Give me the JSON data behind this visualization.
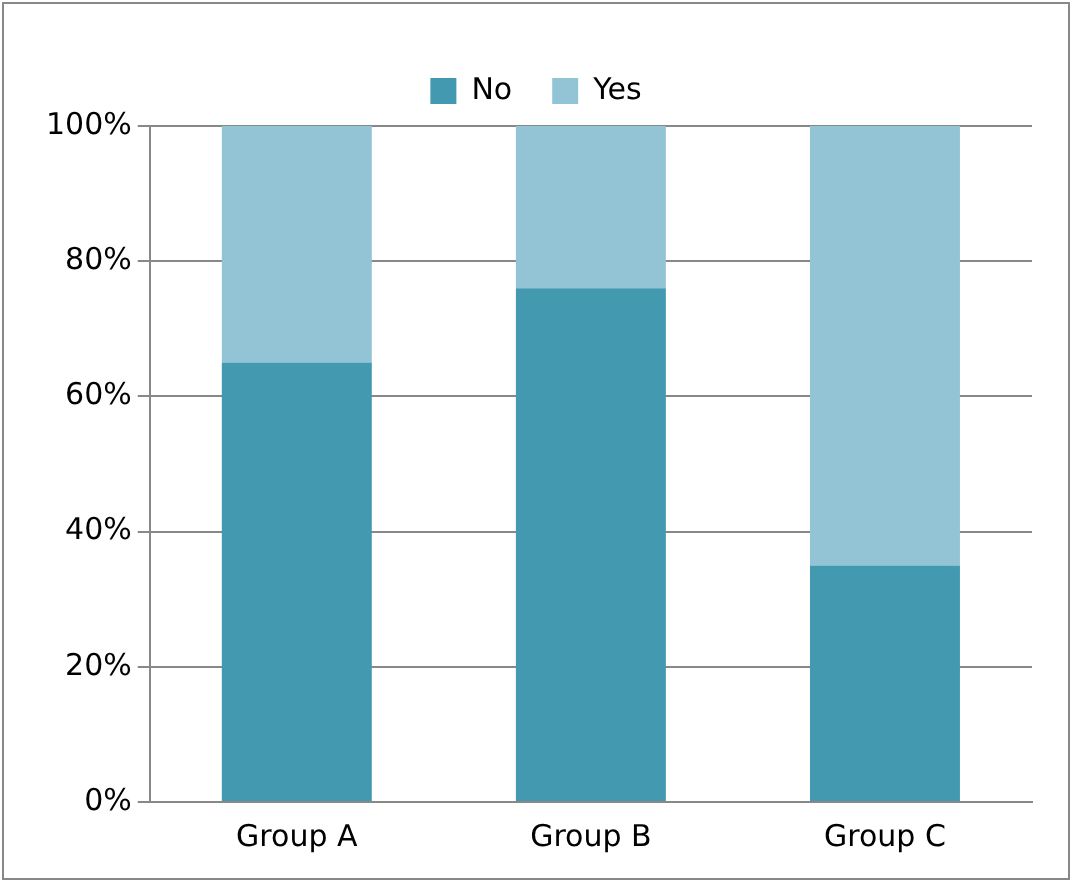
{
  "chart_data": {
    "type": "bar",
    "stacked": true,
    "categories": [
      "Group A",
      "Group B",
      "Group C"
    ],
    "series": [
      {
        "name": "No",
        "color": "#4399b0",
        "values": [
          65,
          76,
          35
        ]
      },
      {
        "name": "Yes",
        "color": "#93c4d6",
        "values": [
          35,
          24,
          65
        ]
      }
    ],
    "ylim": [
      0,
      100
    ],
    "yticks": [
      {
        "value": 0,
        "label": "0%"
      },
      {
        "value": 20,
        "label": "20%"
      },
      {
        "value": 40,
        "label": "40%"
      },
      {
        "value": 60,
        "label": "60%"
      },
      {
        "value": 80,
        "label": "80%"
      },
      {
        "value": 100,
        "label": "100%"
      }
    ],
    "grid": "y",
    "legend": "top"
  }
}
